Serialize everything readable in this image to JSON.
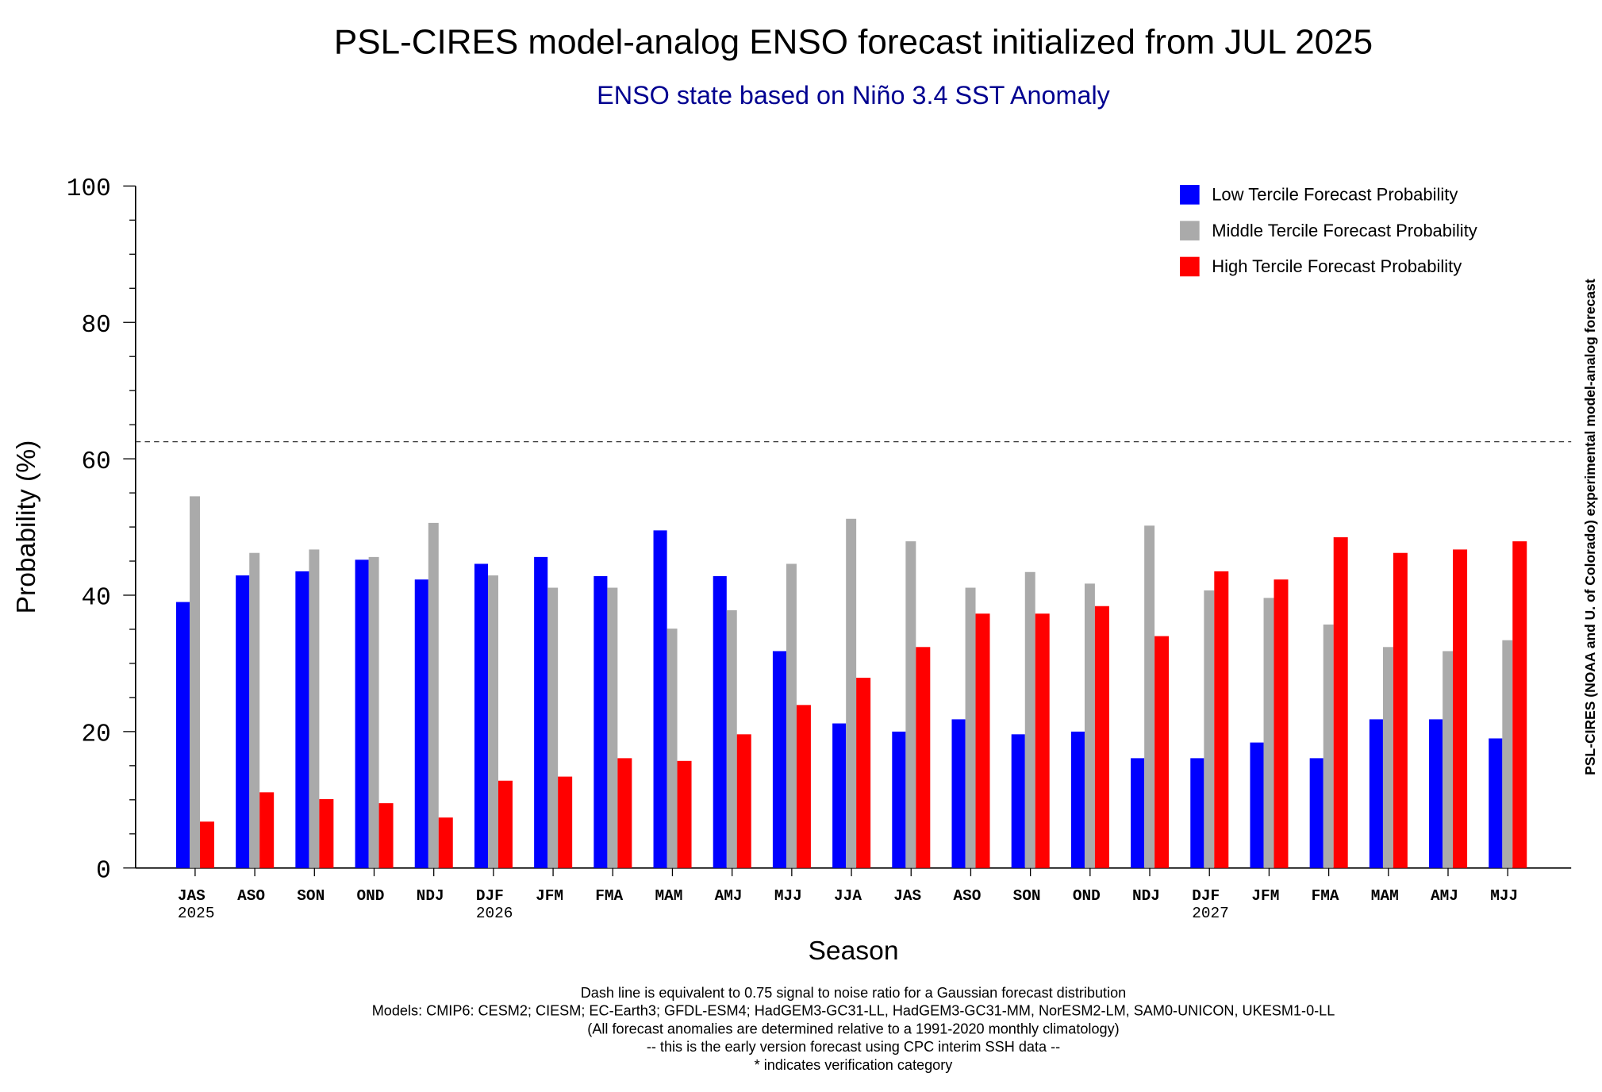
{
  "chart_data": {
    "type": "bar",
    "title": "PSL-CIRES model-analog ENSO forecast initialized from JUL 2025",
    "subtitle": "ENSO state based on Niño 3.4 SST Anomaly",
    "xlabel": "Season",
    "ylabel": "Probability (%)",
    "ylim": [
      0,
      100
    ],
    "yticks": [
      "0",
      "20",
      "40",
      "60",
      "80",
      "100"
    ],
    "grid": false,
    "legend_position": "top-right",
    "categories": [
      "JAS",
      "ASO",
      "SON",
      "OND",
      "NDJ",
      "DJF",
      "JFM",
      "FMA",
      "MAM",
      "AMJ",
      "MJJ",
      "JJA",
      "JAS",
      "ASO",
      "SON",
      "OND",
      "NDJ",
      "DJF",
      "JFM",
      "FMA",
      "MAM",
      "AMJ",
      "MJJ"
    ],
    "year_labels": {
      "0": "2025",
      "5": "2026",
      "17": "2027"
    },
    "series": [
      {
        "name": "Low Tercile Forecast Probability",
        "color": "#0000ff",
        "values": [
          39.0,
          42.9,
          43.5,
          45.2,
          42.3,
          44.6,
          45.6,
          42.8,
          49.5,
          42.8,
          31.8,
          21.2,
          20.0,
          21.8,
          19.6,
          20.0,
          16.1,
          16.1,
          18.4,
          16.1,
          21.8,
          21.8,
          19.0
        ]
      },
      {
        "name": "Middle Tercile Forecast Probability",
        "color": "#aaaaaa",
        "values": [
          54.5,
          46.2,
          46.7,
          45.6,
          50.6,
          42.9,
          41.1,
          41.1,
          35.1,
          37.8,
          44.6,
          51.2,
          47.9,
          41.1,
          43.4,
          41.7,
          50.2,
          40.7,
          39.6,
          35.7,
          32.4,
          31.8,
          33.4
        ]
      },
      {
        "name": "High Tercile Forecast Probability",
        "color": "#ff0000",
        "values": [
          6.8,
          11.1,
          10.1,
          9.5,
          7.4,
          12.8,
          13.4,
          16.1,
          15.7,
          19.6,
          23.9,
          27.9,
          32.4,
          37.3,
          37.3,
          38.4,
          34.0,
          43.5,
          42.3,
          48.5,
          46.2,
          46.7,
          47.9
        ]
      }
    ],
    "reference_line": {
      "value": 62.5,
      "style": "dashed"
    },
    "side_note": "PSL-CIRES (NOAA and U. of Colorado) experimental model-analog forecast",
    "footnotes": [
      "Dash line is equivalent to 0.75 signal to noise ratio for a Gaussian forecast distribution",
      "Models: CMIP6: CESM2; CIESM; EC-Earth3; GFDL-ESM4; HadGEM3-GC31-LL, HadGEM3-GC31-MM, NorESM2-LM, SAM0-UNICON, UKESM1-0-LL",
      "(All forecast anomalies are determined relative to a 1991-2020 monthly climatology)",
      "-- this is the early version forecast using CPC interim SSH data --",
      "* indicates verification category"
    ]
  }
}
